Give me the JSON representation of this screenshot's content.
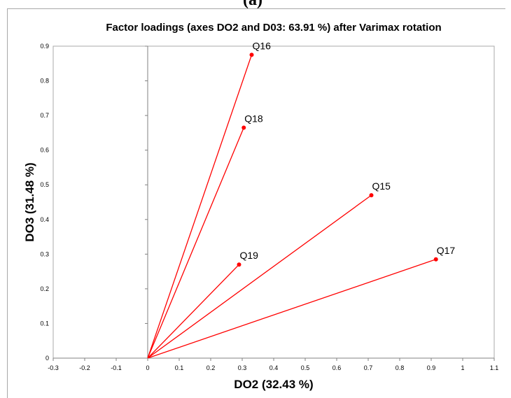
{
  "panel_label": "(a)",
  "chart_data": {
    "type": "scatter",
    "title": "Factor loadings (axes DO2 and D03: 63.91 %) after Varimax rotation",
    "xlabel": "DO2 (32.43 %)",
    "ylabel": "DO3 (31.48 %)",
    "xlim": [
      -0.3,
      1.1
    ],
    "ylim": [
      0,
      0.9
    ],
    "xticks": [
      "-0.3",
      "-0.2",
      "-0.1",
      "0",
      "0.1",
      "0.2",
      "0.3",
      "0.4",
      "0.5",
      "0.6",
      "0.7",
      "0.8",
      "0.9",
      "1",
      "1.1"
    ],
    "yticks": [
      "0",
      "0.1",
      "0.2",
      "0.3",
      "0.4",
      "0.5",
      "0.6",
      "0.7",
      "0.8",
      "0.9"
    ],
    "grid": false,
    "vectors_from_origin": true,
    "colors": {
      "series": "#ff0000",
      "axis": "#808080",
      "frame": "#a8a8a8"
    },
    "points": [
      {
        "label": "Q16",
        "x": 0.33,
        "y": 0.875
      },
      {
        "label": "Q18",
        "x": 0.305,
        "y": 0.665
      },
      {
        "label": "Q15",
        "x": 0.71,
        "y": 0.47
      },
      {
        "label": "Q19",
        "x": 0.29,
        "y": 0.27
      },
      {
        "label": "Q17",
        "x": 0.915,
        "y": 0.285
      }
    ]
  }
}
